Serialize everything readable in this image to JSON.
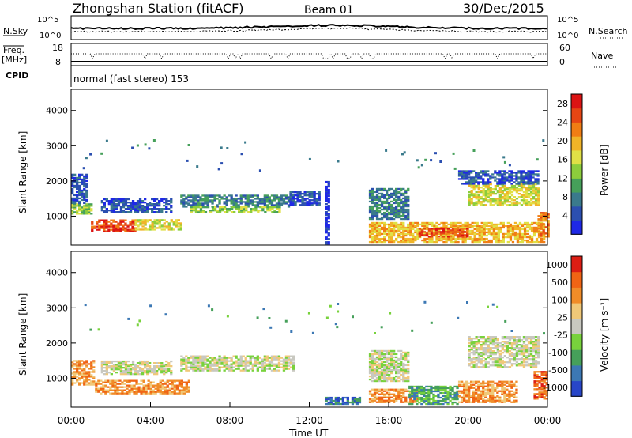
{
  "header": {
    "station": "Zhongshan Station (fitACF)",
    "beam": "Beam 01",
    "date": "30/Dec/2015"
  },
  "strip_panels": {
    "nsky_label": "N.Sky",
    "nsky_ticks": [
      "10^5",
      "10^0"
    ],
    "nsearch_label": "N.Search",
    "nsearch_ticks": [
      "10^5",
      "10^0"
    ],
    "freq_label_line1": "Freq.",
    "freq_label_line2": "[MHz]",
    "freq_ticks": [
      "18",
      "8"
    ],
    "nave_label": "Nave",
    "nave_ticks": [
      "60",
      "0"
    ],
    "cpid_label": "CPID",
    "cpid_value": "normal (fast stereo) 153"
  },
  "chart_data": [
    {
      "type": "heatmap",
      "title": "",
      "xlabel": "Time UT",
      "ylabel": "Slant Range [km]",
      "x_ticks": [
        "00:00",
        "04:00",
        "08:00",
        "12:00",
        "16:00",
        "20:00",
        "00:00"
      ],
      "xlim_hours": [
        0,
        24
      ],
      "y_ticks": [
        "1000",
        "2000",
        "3000",
        "4000"
      ],
      "ylim": [
        180,
        4600
      ],
      "colorbar": {
        "label": "Power [dB]",
        "ticks": [
          "4",
          "8",
          "12",
          "16",
          "20",
          "24",
          "28"
        ],
        "colors": [
          "#1e28e6",
          "#2b4fb0",
          "#3a7a8c",
          "#46a05a",
          "#8ccd3c",
          "#e0e046",
          "#f0b428",
          "#f07d14",
          "#e64614",
          "#dc1414"
        ]
      },
      "regions": [
        {
          "t0": 0.0,
          "t1": 1.0,
          "r0": 1050,
          "r1": 1350,
          "level": 4
        },
        {
          "t0": 0.0,
          "t1": 0.8,
          "r0": 1350,
          "r1": 2200,
          "level": 1
        },
        {
          "t0": 1.0,
          "t1": 3.2,
          "r0": 550,
          "r1": 900,
          "level": 8
        },
        {
          "t0": 3.2,
          "t1": 5.5,
          "r0": 600,
          "r1": 900,
          "level": 5
        },
        {
          "t0": 1.5,
          "t1": 5.0,
          "r0": 1100,
          "r1": 1500,
          "level": 1
        },
        {
          "t0": 5.5,
          "t1": 11.2,
          "r0": 1250,
          "r1": 1600,
          "level": 2
        },
        {
          "t0": 6.0,
          "t1": 10.5,
          "r0": 1100,
          "r1": 1250,
          "level": 4
        },
        {
          "t0": 11.0,
          "t1": 12.5,
          "r0": 1300,
          "r1": 1700,
          "level": 1
        },
        {
          "t0": 12.8,
          "t1": 13.0,
          "r0": 200,
          "r1": 2000,
          "level": 0
        },
        {
          "t0": 15.0,
          "t1": 23.8,
          "r0": 250,
          "r1": 800,
          "level": 6
        },
        {
          "t0": 17.5,
          "t1": 20.0,
          "r0": 400,
          "r1": 650,
          "level": 8
        },
        {
          "t0": 15.0,
          "t1": 17.0,
          "r0": 900,
          "r1": 1800,
          "level": 2
        },
        {
          "t0": 20.0,
          "t1": 23.5,
          "r0": 1300,
          "r1": 1900,
          "level": 5
        },
        {
          "t0": 19.5,
          "t1": 23.5,
          "r0": 1900,
          "r1": 2300,
          "level": 1
        },
        {
          "t0": 23.5,
          "t1": 24.0,
          "r0": 400,
          "r1": 1100,
          "level": 7
        }
      ]
    },
    {
      "type": "heatmap",
      "title": "",
      "xlabel": "Time UT",
      "ylabel": "Slant Range [km]",
      "x_ticks": [
        "00:00",
        "04:00",
        "08:00",
        "12:00",
        "16:00",
        "20:00",
        "00:00"
      ],
      "xlim_hours": [
        0,
        24
      ],
      "y_ticks": [
        "1000",
        "2000",
        "3000",
        "4000"
      ],
      "ylim": [
        180,
        4600
      ],
      "colorbar": {
        "label": "Velocity [m s⁻¹]",
        "ticks": [
          "1000",
          "500",
          "100",
          "25",
          "-25",
          "-100",
          "-500",
          "-1000"
        ],
        "colors": [
          "#2846c8",
          "#3c78b4",
          "#46a05a",
          "#78d23c",
          "#c8c8c0",
          "#f0c878",
          "#f08c28",
          "#f06414",
          "#dc1e14"
        ]
      },
      "regions": [
        {
          "t0": 0.0,
          "t1": 1.2,
          "r0": 800,
          "r1": 1500,
          "level": 6
        },
        {
          "t0": 1.2,
          "t1": 6.0,
          "r0": 550,
          "r1": 950,
          "level": 6
        },
        {
          "t0": 1.5,
          "t1": 5.0,
          "r0": 1100,
          "r1": 1500,
          "level": 4
        },
        {
          "t0": 5.5,
          "t1": 11.2,
          "r0": 1200,
          "r1": 1650,
          "level": 4
        },
        {
          "t0": 12.8,
          "t1": 14.5,
          "r0": 250,
          "r1": 450,
          "level": 1
        },
        {
          "t0": 15.0,
          "t1": 17.5,
          "r0": 300,
          "r1": 700,
          "level": 6
        },
        {
          "t0": 17.0,
          "t1": 19.5,
          "r0": 250,
          "r1": 750,
          "level": 2
        },
        {
          "t0": 19.5,
          "t1": 22.5,
          "r0": 300,
          "r1": 900,
          "level": 6
        },
        {
          "t0": 15.0,
          "t1": 17.0,
          "r0": 900,
          "r1": 1800,
          "level": 4
        },
        {
          "t0": 20.0,
          "t1": 23.5,
          "r0": 1300,
          "r1": 2200,
          "level": 4
        },
        {
          "t0": 23.3,
          "t1": 24.0,
          "r0": 400,
          "r1": 1200,
          "level": 7
        }
      ]
    }
  ]
}
